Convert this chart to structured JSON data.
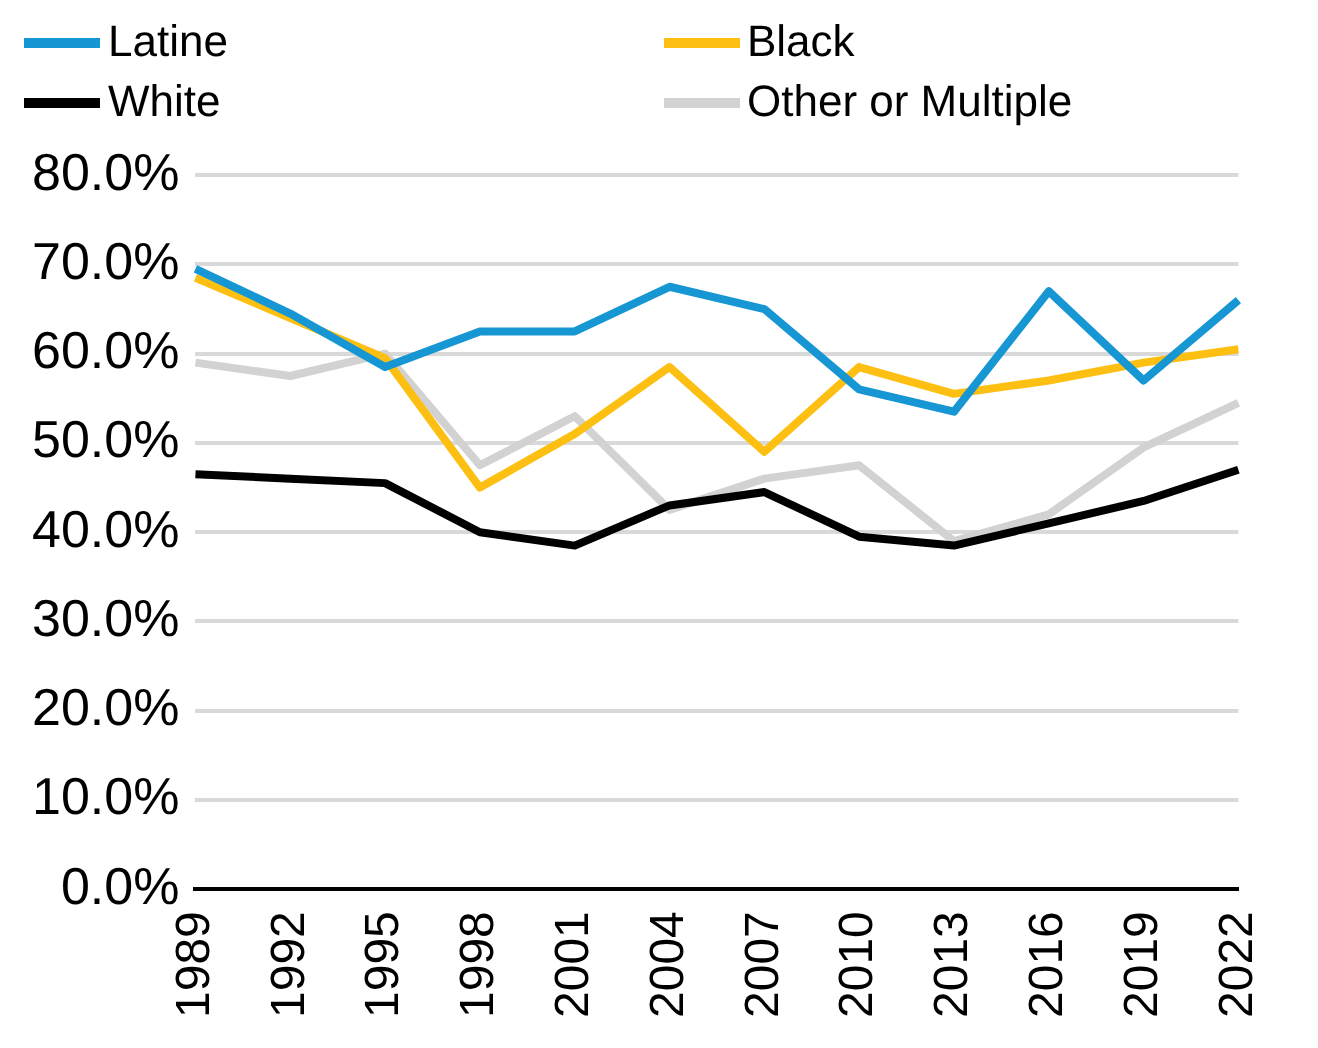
{
  "chart_data": {
    "type": "line",
    "categories": [
      "1989",
      "1992",
      "1995",
      "1998",
      "2001",
      "2004",
      "2007",
      "2010",
      "2013",
      "2016",
      "2019",
      "2022"
    ],
    "series": [
      {
        "name": "Latine",
        "color": "#1696d2",
        "values": [
          69.5,
          64.5,
          58.5,
          62.5,
          62.5,
          67.5,
          65,
          56,
          53.5,
          67,
          57,
          66
        ]
      },
      {
        "name": "Black",
        "color": "#fdbf11",
        "values": [
          68.5,
          64,
          59.5,
          45,
          51,
          58.5,
          49,
          58.5,
          55.5,
          57,
          59,
          60.5
        ]
      },
      {
        "name": "White",
        "color": "#000000",
        "values": [
          46.5,
          46,
          45.5,
          40,
          38.5,
          43,
          44.5,
          39.5,
          38.5,
          41,
          43.5,
          47
        ]
      },
      {
        "name": "Other or Multiple",
        "color": "#d2d2d2",
        "values": [
          59,
          57.5,
          60,
          47.5,
          53,
          42.5,
          46,
          47.5,
          39,
          42,
          49.5,
          54.5
        ]
      }
    ],
    "ylim": [
      0,
      80
    ],
    "yticks": [
      {
        "value": 0,
        "label": "0.0%"
      },
      {
        "value": 10,
        "label": "10.0%"
      },
      {
        "value": 20,
        "label": "20.0%"
      },
      {
        "value": 30,
        "label": "30.0%"
      },
      {
        "value": 40,
        "label": "40.0%"
      },
      {
        "value": 50,
        "label": "50.0%"
      },
      {
        "value": 60,
        "label": "60.0%"
      },
      {
        "value": 70,
        "label": "70.0%"
      },
      {
        "value": 80,
        "label": "80.0%"
      }
    ],
    "grid": "y",
    "legend": "top",
    "marker": "none",
    "line_style": "solid"
  }
}
